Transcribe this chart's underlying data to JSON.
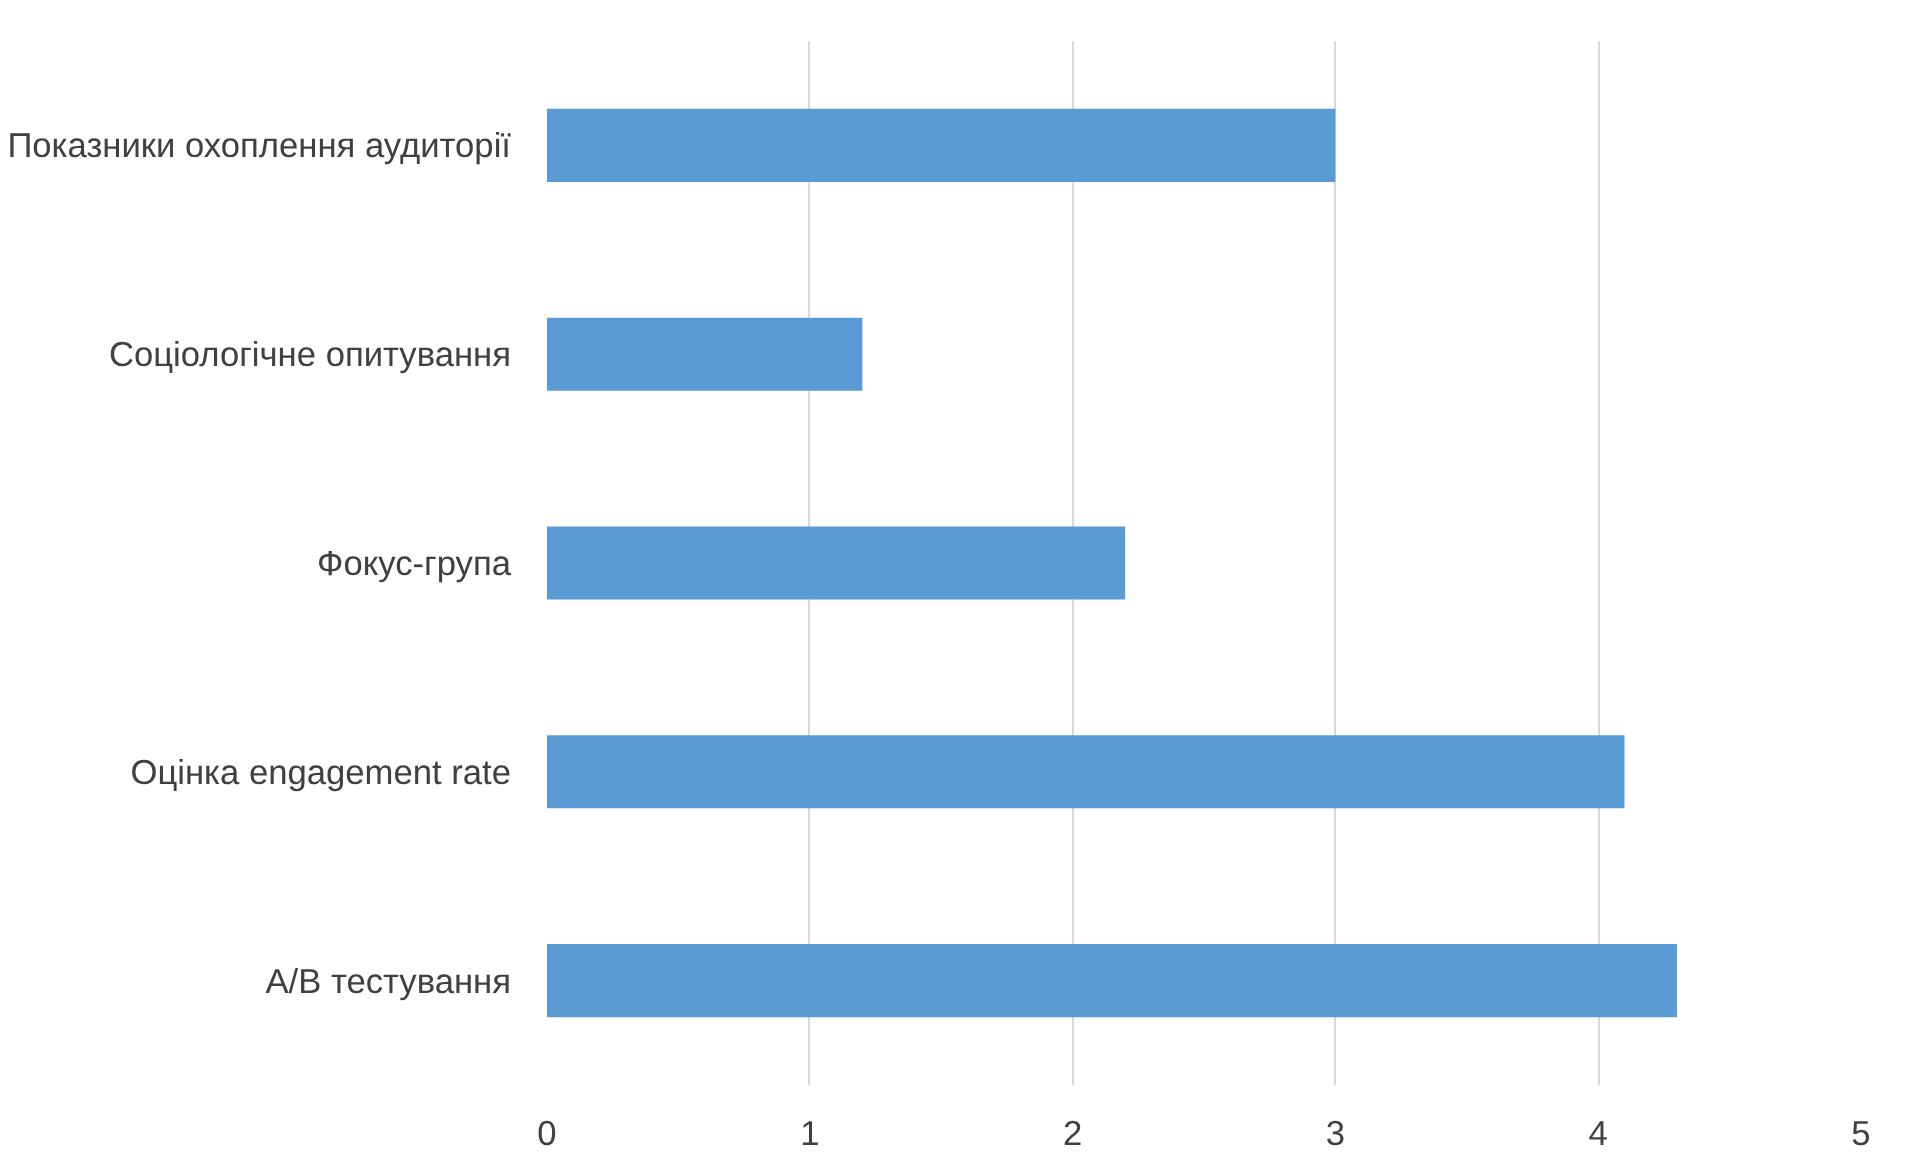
{
  "chart_data": {
    "type": "bar",
    "orientation": "horizontal",
    "categories": [
      "Показники охоплення аудиторії",
      "Соціологічне опитування",
      "Фокус-група",
      "Оцінка engagement rate",
      "A/B тестування"
    ],
    "values": [
      3.0,
      1.2,
      2.2,
      4.1,
      4.3
    ],
    "color": "#5b9bd5",
    "xlim": [
      0,
      5
    ],
    "xticks": [
      0,
      1,
      2,
      3,
      4,
      5
    ],
    "grid": "x"
  }
}
